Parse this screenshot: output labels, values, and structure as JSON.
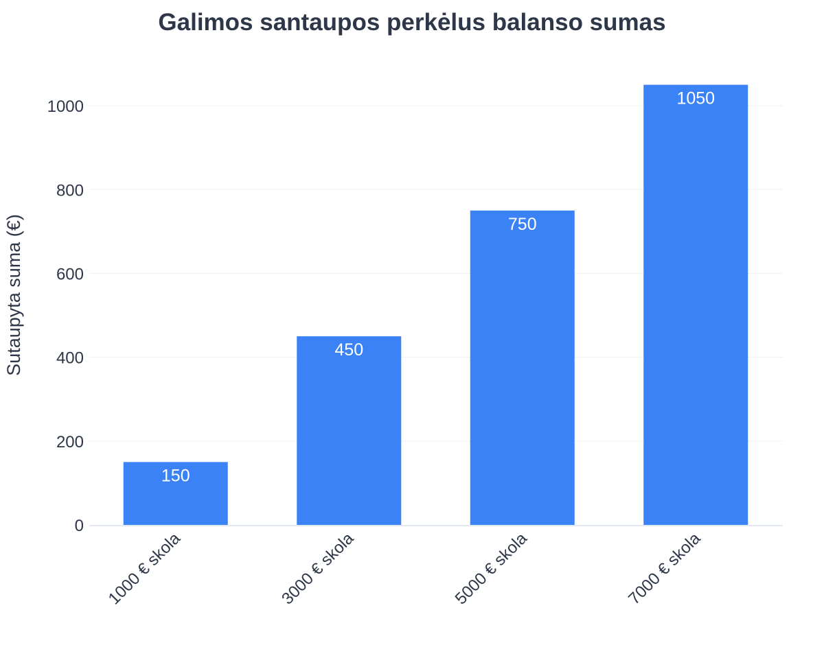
{
  "chart_data": {
    "type": "bar",
    "title": "Galimos santaupos perkėlus balanso sumas",
    "xlabel": "",
    "ylabel": "Sutaupyta suma (€)",
    "categories": [
      "1000 € skola",
      "3000 € skola",
      "5000 € skola",
      "7000 € skola"
    ],
    "series": [
      {
        "values": [
          150,
          450,
          750,
          1050
        ]
      }
    ],
    "data_labels": [
      "150",
      "450",
      "750",
      "1050"
    ],
    "yticks": [
      0,
      200,
      400,
      600,
      800,
      1000
    ],
    "ylim": [
      0,
      1105
    ],
    "grid": true,
    "legend": "none",
    "colors": {
      "bar": "#3b82f6",
      "text": "#2d3748",
      "bar_label": "#ffffff",
      "grid": "#edf1f6",
      "axis": "#e3e9f2",
      "background": "#ffffff"
    }
  }
}
